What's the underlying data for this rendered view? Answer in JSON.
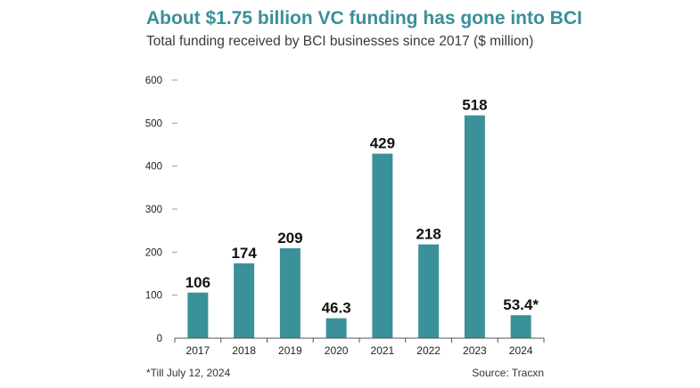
{
  "title": "About $1.75 billion VC funding has gone into BCI",
  "subtitle": "Total funding received by BCI businesses since 2017 ($ million)",
  "footnote": "*Till July 12, 2024",
  "source": "Source: Tracxn",
  "colors": {
    "bar": "#3a9199",
    "title": "#3a8f98"
  },
  "chart_data": {
    "type": "bar",
    "categories": [
      "2017",
      "2018",
      "2019",
      "2020",
      "2021",
      "2022",
      "2023",
      "2024"
    ],
    "values": [
      106,
      174,
      209,
      46.3,
      429,
      218,
      518,
      53.4
    ],
    "data_labels": [
      "106",
      "174",
      "209",
      "46.3",
      "429",
      "218",
      "518",
      "53.4*"
    ],
    "y_ticks": [
      0,
      100,
      200,
      300,
      400,
      500,
      600
    ],
    "ylim": [
      0,
      600
    ],
    "grid": false,
    "legend": "none"
  }
}
